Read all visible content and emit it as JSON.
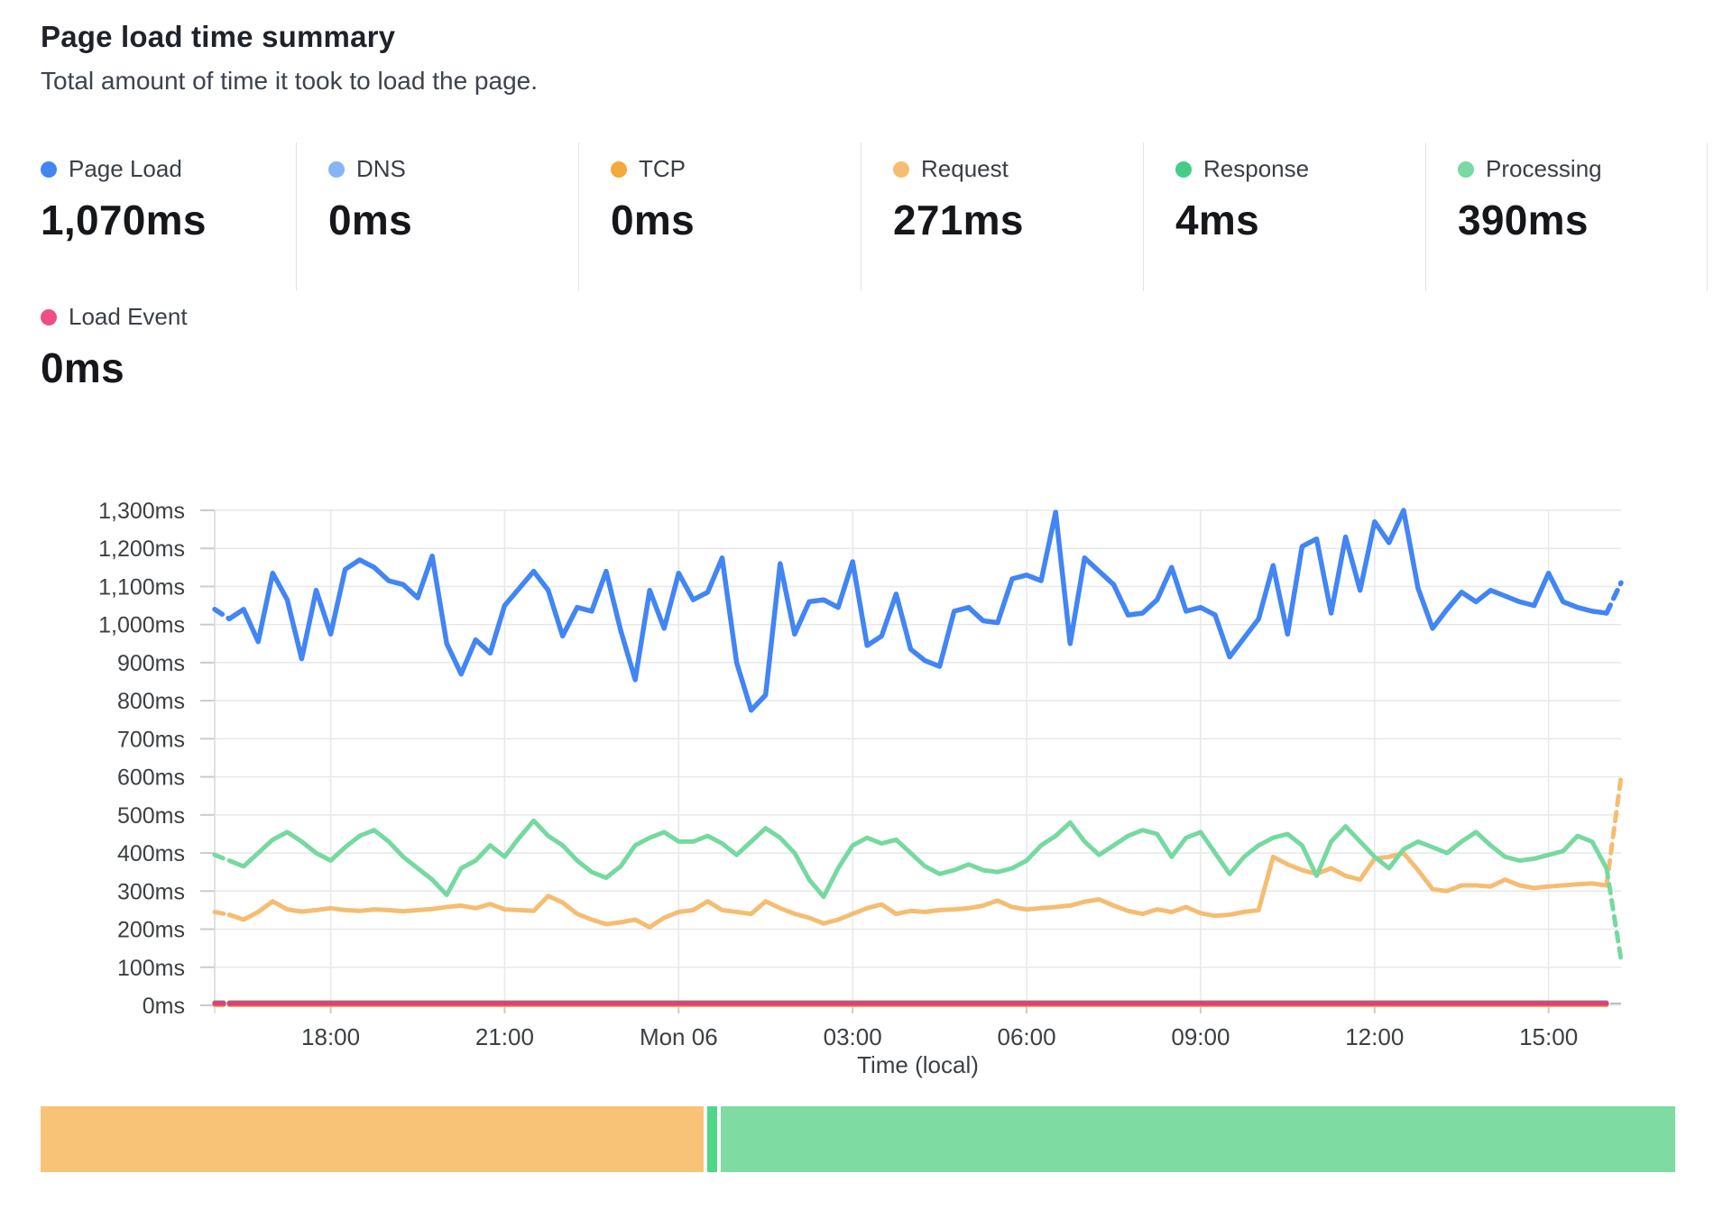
{
  "header": {
    "title": "Page load time summary",
    "subtitle": "Total amount of time it took to load the page."
  },
  "stats": [
    {
      "label": "Page Load",
      "value": "1,070ms",
      "color": "#4285f4"
    },
    {
      "label": "DNS",
      "value": "0ms",
      "color": "#85b5f8"
    },
    {
      "label": "TCP",
      "value": "0ms",
      "color": "#f3a93c"
    },
    {
      "label": "Request",
      "value": "271ms",
      "color": "#f6bd72"
    },
    {
      "label": "Response",
      "value": "4ms",
      "color": "#44ce85"
    },
    {
      "label": "Processing",
      "value": "390ms",
      "color": "#79d9a1"
    }
  ],
  "stats_row2": [
    {
      "label": "Load Event",
      "value": "0ms",
      "color": "#ee4e85"
    }
  ],
  "chart_data": [
    {
      "type": "line",
      "title": "Page load time summary",
      "xlabel": "Time (local)",
      "ylabel": "",
      "ylim": [
        0,
        1300
      ],
      "grid": true,
      "x_axis": {
        "label": "Time (local)",
        "start_time": "16:00",
        "span_hours": 24.25,
        "point_interval_minutes": 15,
        "ticks": [
          {
            "label": "18:00",
            "hour_offset": 2
          },
          {
            "label": "21:00",
            "hour_offset": 5
          },
          {
            "label": "Mon 06",
            "hour_offset": 8
          },
          {
            "label": "03:00",
            "hour_offset": 11
          },
          {
            "label": "06:00",
            "hour_offset": 14
          },
          {
            "label": "09:00",
            "hour_offset": 17
          },
          {
            "label": "12:00",
            "hour_offset": 20
          },
          {
            "label": "15:00",
            "hour_offset": 23
          }
        ]
      },
      "y_axis": {
        "ticks": [
          {
            "value": 0,
            "label": "0ms"
          },
          {
            "value": 100,
            "label": "100ms"
          },
          {
            "value": 200,
            "label": "200ms"
          },
          {
            "value": 300,
            "label": "300ms"
          },
          {
            "value": 400,
            "label": "400ms"
          },
          {
            "value": 500,
            "label": "500ms"
          },
          {
            "value": 600,
            "label": "600ms"
          },
          {
            "value": 700,
            "label": "700ms"
          },
          {
            "value": 800,
            "label": "800ms"
          },
          {
            "value": 900,
            "label": "900ms"
          },
          {
            "value": 1000,
            "label": "1,000ms"
          },
          {
            "value": 1100,
            "label": "1,100ms"
          },
          {
            "value": 1200,
            "label": "1,200ms"
          },
          {
            "value": 1300,
            "label": "1,300ms"
          }
        ]
      },
      "series": [
        {
          "name": "Response",
          "color": "#55d08a",
          "width": 4.5,
          "flat": 8,
          "dash_first": true,
          "trail_value": null
        },
        {
          "name": "DNS",
          "color": "#85b5f8",
          "width": 4,
          "flat": 0,
          "dash_first": true,
          "trail_value": null
        },
        {
          "name": "TCP",
          "color": "#f3a93c",
          "width": 4,
          "flat": 0,
          "dash_first": true,
          "trail_value": null
        },
        {
          "name": "Load Event",
          "color": "#e23e7c",
          "width": 5.5,
          "flat": 5,
          "dash_first": true,
          "trail_value": null
        },
        {
          "name": "Request",
          "color": "#f5bd72",
          "width": 5,
          "dash_first": true,
          "trail_value": 600,
          "values": [
            245,
            238,
            225,
            245,
            273,
            252,
            246,
            250,
            255,
            250,
            248,
            252,
            250,
            247,
            250,
            253,
            258,
            262,
            255,
            266,
            252,
            250,
            248,
            287,
            270,
            240,
            225,
            213,
            218,
            225,
            205,
            230,
            245,
            250,
            273,
            250,
            245,
            240,
            273,
            255,
            240,
            230,
            215,
            225,
            240,
            255,
            265,
            240,
            248,
            245,
            250,
            252,
            255,
            262,
            275,
            258,
            252,
            255,
            258,
            262,
            272,
            278,
            262,
            248,
            240,
            252,
            245,
            258,
            242,
            235,
            238,
            245,
            250,
            390,
            370,
            355,
            345,
            360,
            340,
            330,
            385,
            390,
            400,
            355,
            305,
            300,
            315,
            315,
            312,
            330,
            315,
            308,
            312,
            315,
            318,
            320,
            315
          ]
        },
        {
          "name": "Processing",
          "color": "#76d9a0",
          "width": 5,
          "dash_first": true,
          "trail_value": 120,
          "values": [
            395,
            380,
            365,
            400,
            435,
            455,
            430,
            400,
            380,
            415,
            445,
            460,
            430,
            390,
            360,
            330,
            290,
            360,
            380,
            420,
            390,
            440,
            485,
            445,
            420,
            380,
            350,
            335,
            365,
            420,
            440,
            455,
            430,
            430,
            445,
            425,
            395,
            430,
            465,
            440,
            400,
            330,
            285,
            360,
            420,
            440,
            425,
            435,
            400,
            365,
            345,
            355,
            370,
            355,
            350,
            360,
            380,
            420,
            445,
            480,
            430,
            395,
            420,
            445,
            460,
            450,
            390,
            440,
            455,
            400,
            345,
            390,
            420,
            440,
            450,
            420,
            340,
            430,
            470,
            430,
            390,
            360,
            410,
            430,
            415,
            400,
            430,
            455,
            420,
            390,
            380,
            385,
            395,
            405,
            445,
            430,
            360
          ]
        },
        {
          "name": "Page Load",
          "color": "#4285f4",
          "width": 5.5,
          "dash_first": true,
          "trail_value": 1110,
          "values": [
            1040,
            1015,
            1040,
            955,
            1135,
            1065,
            910,
            1090,
            975,
            1145,
            1170,
            1150,
            1115,
            1105,
            1070,
            1180,
            950,
            870,
            960,
            925,
            1050,
            1095,
            1140,
            1090,
            970,
            1045,
            1035,
            1140,
            985,
            855,
            1090,
            990,
            1135,
            1065,
            1085,
            1175,
            900,
            775,
            815,
            1160,
            975,
            1060,
            1065,
            1045,
            1165,
            945,
            970,
            1080,
            935,
            905,
            890,
            1035,
            1045,
            1010,
            1005,
            1120,
            1130,
            1115,
            1295,
            950,
            1175,
            1140,
            1105,
            1025,
            1030,
            1065,
            1150,
            1035,
            1045,
            1025,
            915,
            965,
            1015,
            1155,
            975,
            1205,
            1225,
            1030,
            1230,
            1090,
            1270,
            1215,
            1300,
            1095,
            990,
            1040,
            1085,
            1060,
            1090,
            1075,
            1060,
            1050,
            1135,
            1060,
            1045,
            1035,
            1030
          ]
        }
      ]
    },
    {
      "type": "stacked-bar",
      "description": "Proportional breakdown of page load phases",
      "segments": [
        {
          "label": "Request",
          "value_ms": 271,
          "color": "#f8c377"
        },
        {
          "label": "Response",
          "value_ms": 4,
          "color": "#50d687"
        },
        {
          "label": "Processing",
          "value_ms": 390,
          "color": "#7edba1"
        }
      ]
    }
  ]
}
